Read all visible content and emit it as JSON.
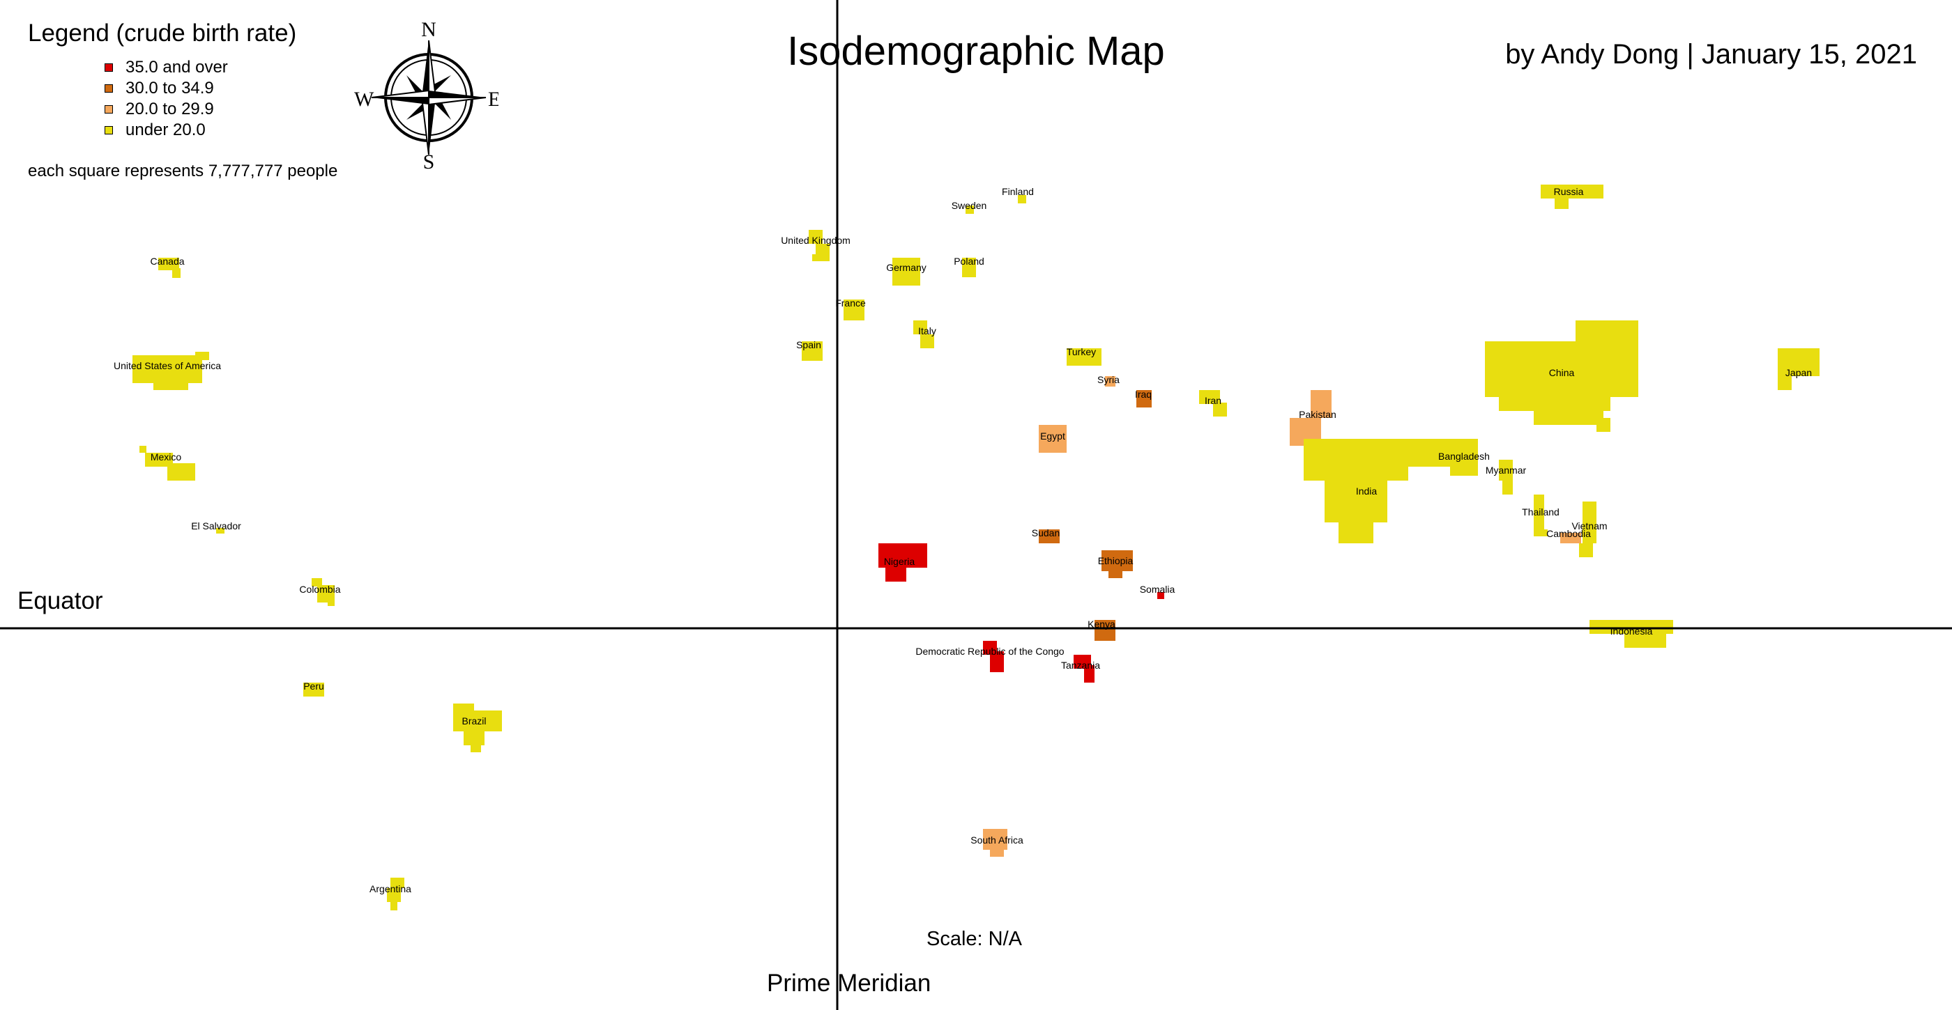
{
  "title": "Isodemographic Map",
  "byline": "by Andy Dong | January 15, 2021",
  "legend": {
    "title": "Legend (crude birth rate)",
    "items": [
      {
        "label": "35.0 and over",
        "color": "#dd0000"
      },
      {
        "label": "30.0 to 34.9",
        "color": "#d06a10"
      },
      {
        "label": "20.0 to 29.9",
        "color": "#f5a85c"
      },
      {
        "label": "under 20.0",
        "color": "#e8de10"
      }
    ],
    "note": "each square represents 7,777,777 people"
  },
  "compass": {
    "icon": "compass-rose-icon",
    "n": "N",
    "s": "S",
    "e": "E",
    "w": "W"
  },
  "reference_lines": {
    "equator": "Equator",
    "prime_meridian": "Prime Meridian"
  },
  "scale": "Scale: N/A",
  "countries": [
    {
      "name": "Canada",
      "category": "under 20.0"
    },
    {
      "name": "United States of America",
      "category": "under 20.0"
    },
    {
      "name": "Mexico",
      "category": "under 20.0"
    },
    {
      "name": "El Salvador",
      "category": "under 20.0"
    },
    {
      "name": "Colombia",
      "category": "under 20.0"
    },
    {
      "name": "Peru",
      "category": "under 20.0"
    },
    {
      "name": "Brazil",
      "category": "under 20.0"
    },
    {
      "name": "Argentina",
      "category": "under 20.0"
    },
    {
      "name": "United Kingdom",
      "category": "under 20.0"
    },
    {
      "name": "France",
      "category": "under 20.0"
    },
    {
      "name": "Spain",
      "category": "under 20.0"
    },
    {
      "name": "Germany",
      "category": "under 20.0"
    },
    {
      "name": "Italy",
      "category": "under 20.0"
    },
    {
      "name": "Poland",
      "category": "under 20.0"
    },
    {
      "name": "Sweden",
      "category": "under 20.0"
    },
    {
      "name": "Finland",
      "category": "under 20.0"
    },
    {
      "name": "Russia",
      "category": "under 20.0"
    },
    {
      "name": "Turkey",
      "category": "under 20.0"
    },
    {
      "name": "Syria",
      "category": "20.0 to 29.9"
    },
    {
      "name": "Iraq",
      "category": "30.0 to 34.9"
    },
    {
      "name": "Iran",
      "category": "under 20.0"
    },
    {
      "name": "Egypt",
      "category": "20.0 to 29.9"
    },
    {
      "name": "Sudan",
      "category": "30.0 to 34.9"
    },
    {
      "name": "Nigeria",
      "category": "35.0 and over"
    },
    {
      "name": "Ethiopia",
      "category": "30.0 to 34.9"
    },
    {
      "name": "Somalia",
      "category": "35.0 and over"
    },
    {
      "name": "Kenya",
      "category": "30.0 to 34.9"
    },
    {
      "name": "Democratic Republic of the Congo",
      "category": "35.0 and over"
    },
    {
      "name": "Tanzania",
      "category": "35.0 and over"
    },
    {
      "name": "South Africa",
      "category": "20.0 to 29.9"
    },
    {
      "name": "Pakistan",
      "category": "20.0 to 29.9"
    },
    {
      "name": "India",
      "category": "under 20.0"
    },
    {
      "name": "Bangladesh",
      "category": "under 20.0"
    },
    {
      "name": "Myanmar",
      "category": "under 20.0"
    },
    {
      "name": "Thailand",
      "category": "under 20.0"
    },
    {
      "name": "Cambodia",
      "category": "20.0 to 29.9"
    },
    {
      "name": "Vietnam",
      "category": "under 20.0"
    },
    {
      "name": "China",
      "category": "under 20.0"
    },
    {
      "name": "Japan",
      "category": "under 20.0"
    },
    {
      "name": "Indonesia",
      "category": "under 20.0"
    }
  ]
}
